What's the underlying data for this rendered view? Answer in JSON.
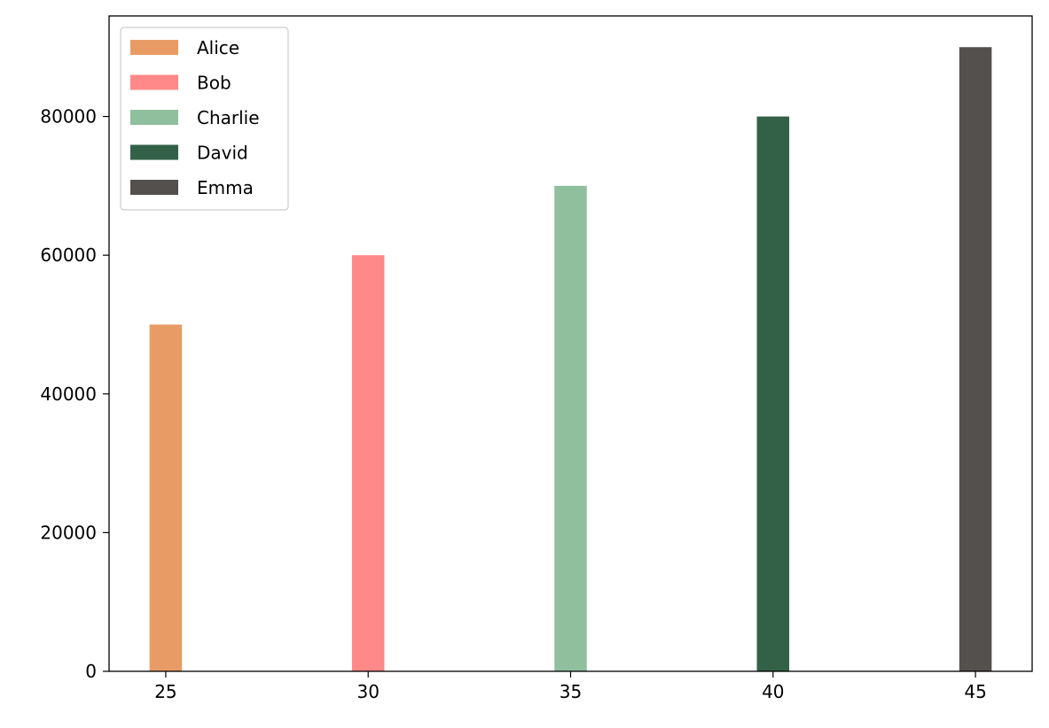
{
  "chart_data": {
    "type": "bar",
    "title": "",
    "xlabel": "",
    "ylabel": "",
    "x": [
      25,
      30,
      35,
      40,
      45
    ],
    "xlim": [
      23.6,
      46.4
    ],
    "ylim": [
      0,
      94500
    ],
    "x_ticks": [
      "25",
      "30",
      "35",
      "40",
      "45"
    ],
    "y_ticks": [
      0,
      20000,
      40000,
      60000,
      80000
    ],
    "bar_width": 0.8,
    "grid": false,
    "legend": "top-left",
    "series": [
      {
        "name": "Alice",
        "x": 25,
        "value": 50000,
        "color": "#E99B66"
      },
      {
        "name": "Bob",
        "x": 30,
        "value": 60000,
        "color": "#FF8888"
      },
      {
        "name": "Charlie",
        "x": 35,
        "value": 70000,
        "color": "#90BF9E"
      },
      {
        "name": "David",
        "x": 40,
        "value": 80000,
        "color": "#336148"
      },
      {
        "name": "Emma",
        "x": 45,
        "value": 90000,
        "color": "#54504E"
      }
    ]
  }
}
